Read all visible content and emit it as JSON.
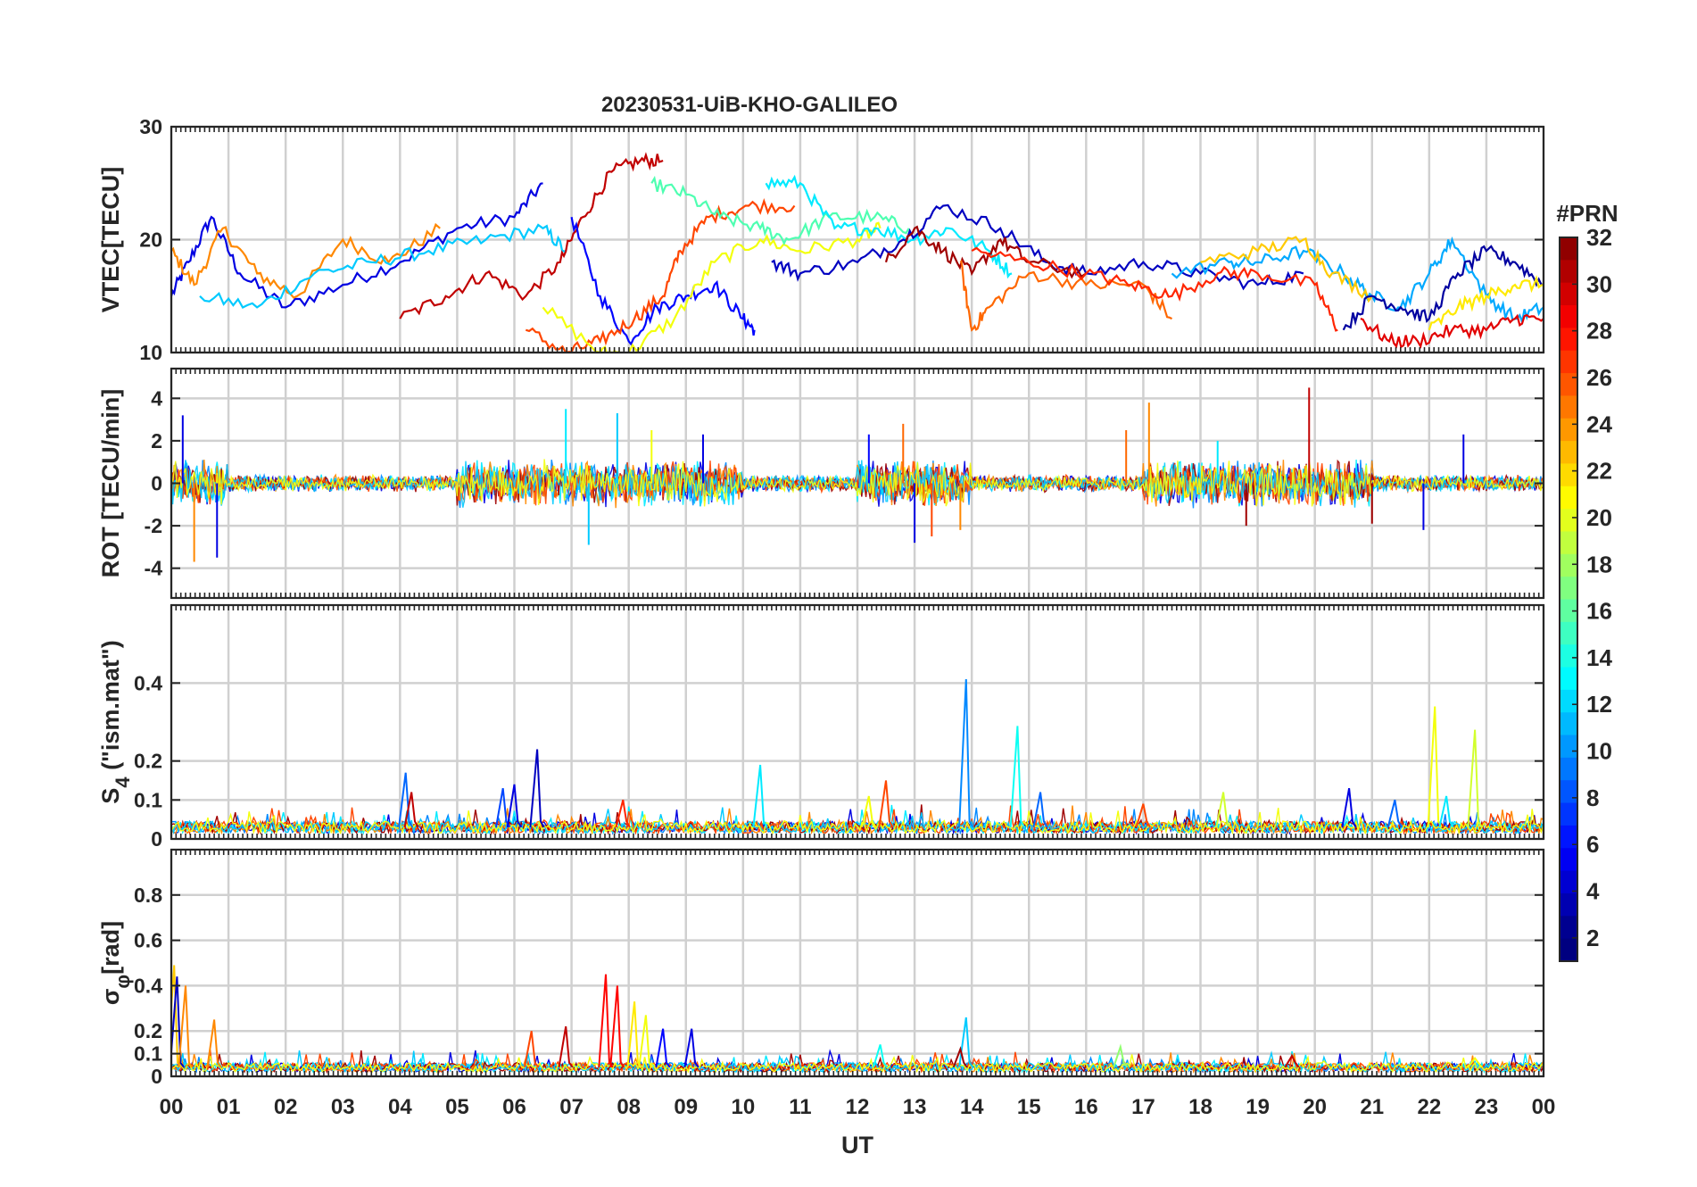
{
  "chart_data": {
    "type": "line",
    "title": "20230531-UiB-KHO-GALILEO",
    "xlabel": "UT",
    "x_tick_labels": [
      "00",
      "01",
      "02",
      "03",
      "04",
      "05",
      "06",
      "07",
      "08",
      "09",
      "10",
      "11",
      "12",
      "13",
      "14",
      "15",
      "16",
      "17",
      "18",
      "19",
      "20",
      "21",
      "22",
      "23",
      "00"
    ],
    "xlim": [
      0,
      24
    ],
    "panels": [
      {
        "id": "vtec",
        "ylabel": "VTEC[TECU]",
        "ylim": [
          10,
          30
        ],
        "y_ticks": [
          10,
          20,
          30
        ],
        "y_tick_labels": [
          "10",
          "20",
          "30"
        ],
        "series": [
          {
            "prn": 4,
            "x": [
              0.0,
              0.3,
              0.7,
              1.2,
              2.0,
              3.0,
              4.0,
              5.0,
              6.0,
              6.5
            ],
            "y": [
              15,
              18,
              22,
              17,
              14,
              16,
              18,
              21,
              22,
              25
            ]
          },
          {
            "prn": 24,
            "x": [
              0.0,
              0.4,
              0.9,
              1.5,
              2.2,
              3.0,
              3.8,
              4.7
            ],
            "y": [
              19,
              16,
              21,
              17,
              15,
              20,
              18,
              21
            ]
          },
          {
            "prn": 11,
            "x": [
              0.5,
              1.5,
              2.5,
              3.5,
              4.5,
              5.5,
              6.5,
              6.9
            ],
            "y": [
              15,
              14,
              17,
              18,
              19,
              20,
              21,
              19
            ]
          },
          {
            "prn": 30,
            "x": [
              4.0,
              4.8,
              5.5,
              6.2,
              6.8,
              7.2,
              7.7,
              8.2,
              8.6
            ],
            "y": [
              13,
              15,
              17,
              15,
              18,
              22,
              26,
              27,
              27
            ]
          },
          {
            "prn": 5,
            "x": [
              7.0,
              7.5,
              8.0,
              8.5,
              9.0,
              9.5,
              10.0,
              10.2
            ],
            "y": [
              22,
              15,
              11,
              14,
              15,
              16,
              13,
              12
            ]
          },
          {
            "prn": 26,
            "x": [
              6.2,
              6.9,
              7.5,
              8.1,
              8.6,
              8.9,
              9.4,
              10.1,
              10.9
            ],
            "y": [
              12,
              10,
              11,
              13,
              15,
              19,
              22,
              23,
              23
            ]
          },
          {
            "prn": 20,
            "x": [
              6.5,
              7.5,
              8.0,
              8.8,
              9.5,
              10.3,
              11.0,
              12.0,
              12.4
            ],
            "y": [
              14,
              10,
              10,
              13,
              18,
              20,
              19,
              20,
              21
            ]
          },
          {
            "prn": 15,
            "x": [
              8.4,
              9.0,
              9.6,
              10.3,
              10.8,
              11.5,
              12.3,
              12.9
            ],
            "y": [
              25,
              24,
              22,
              21,
              20,
              22,
              22,
              21
            ]
          },
          {
            "prn": 12,
            "x": [
              10.4,
              11.0,
              11.6,
              12.3,
              13.0,
              13.6,
              14.3,
              14.7
            ],
            "y": [
              25,
              25,
              21,
              21,
              20,
              21,
              19,
              17
            ]
          },
          {
            "prn": 3,
            "x": [
              10.5,
              11.0,
              12.0,
              12.8,
              13.5,
              14.5,
              15.3,
              16.0,
              17.0,
              18.0,
              19.0,
              19.8
            ],
            "y": [
              18,
              17,
              18,
              20,
              23,
              21,
              18,
              17,
              18,
              17,
              16,
              17
            ]
          },
          {
            "prn": 31,
            "x": [
              12.5,
              13.0,
              13.5,
              14.0,
              14.5,
              15.0,
              16.0
            ],
            "y": [
              18,
              21,
              19,
              17,
              20,
              18,
              17
            ]
          },
          {
            "prn": 25,
            "x": [
              13.8,
              14.0,
              14.3,
              15.0,
              16.0,
              17.0,
              17.5
            ],
            "y": [
              18,
              12,
              14,
              17,
              16,
              16,
              13
            ]
          },
          {
            "prn": 27,
            "x": [
              14.0,
              15.0,
              16.0,
              16.8,
              17.5,
              18.3,
              19.0,
              20.0,
              20.4
            ],
            "y": [
              19,
              18,
              17,
              16,
              15,
              17,
              17,
              16,
              12
            ]
          },
          {
            "prn": 10,
            "x": [
              17.5,
              18.5,
              19.0,
              19.8,
              20.5,
              21.0,
              21.5,
              22.0,
              22.4,
              23.0,
              23.5,
              24.0
            ],
            "y": [
              17,
              18,
              18,
              19,
              17,
              15,
              14,
              17,
              20,
              15,
              13,
              14
            ]
          },
          {
            "prn": 22,
            "x": [
              18.0,
              19.0,
              19.8,
              20.3,
              21.0
            ],
            "y": [
              18,
              19,
              20,
              17,
              15
            ]
          },
          {
            "prn": 2,
            "x": [
              20.5,
              21.0,
              21.5,
              22.0,
              22.5,
              23.0,
              23.5,
              24.0
            ],
            "y": [
              12,
              15,
              14,
              13,
              17,
              19,
              18,
              16
            ]
          },
          {
            "prn": 29,
            "x": [
              20.8,
              21.3,
              21.8,
              22.4,
              23.0,
              23.5,
              24.0
            ],
            "y": [
              13,
              11,
              11,
              12,
              12,
              13,
              13
            ]
          },
          {
            "prn": 21,
            "x": [
              22.0,
              22.5,
              23.0,
              23.5,
              24.0
            ],
            "y": [
              12,
              14,
              15,
              16,
              16
            ]
          }
        ]
      },
      {
        "id": "rot",
        "ylabel": "ROT [TECU/min]",
        "ylim": [
          -5.4,
          5.4
        ],
        "y_ticks": [
          -4,
          -2,
          0,
          2,
          4
        ],
        "y_tick_labels": [
          "-4",
          "-2",
          "0",
          "2",
          "4"
        ],
        "noise_prns": [
          4,
          9,
          12,
          24,
          31,
          26,
          11,
          20
        ],
        "noise_amplitude": [
          0.35,
          1.0
        ],
        "spikes": [
          {
            "x": 0.2,
            "y": 3.2,
            "prn": 4
          },
          {
            "x": 0.4,
            "y": -3.7,
            "prn": 24
          },
          {
            "x": 0.8,
            "y": -3.5,
            "prn": 4
          },
          {
            "x": 6.9,
            "y": 3.5,
            "prn": 12
          },
          {
            "x": 7.3,
            "y": -2.9,
            "prn": 11
          },
          {
            "x": 7.8,
            "y": 3.3,
            "prn": 11
          },
          {
            "x": 8.4,
            "y": 2.5,
            "prn": 20
          },
          {
            "x": 9.3,
            "y": 2.3,
            "prn": 4
          },
          {
            "x": 12.2,
            "y": 2.3,
            "prn": 5
          },
          {
            "x": 12.8,
            "y": 2.8,
            "prn": 25
          },
          {
            "x": 13.0,
            "y": -2.8,
            "prn": 4
          },
          {
            "x": 13.3,
            "y": -2.5,
            "prn": 26
          },
          {
            "x": 13.8,
            "y": -2.2,
            "prn": 24
          },
          {
            "x": 16.7,
            "y": 2.5,
            "prn": 25
          },
          {
            "x": 17.1,
            "y": 3.8,
            "prn": 24
          },
          {
            "x": 18.3,
            "y": 2.0,
            "prn": 12
          },
          {
            "x": 18.8,
            "y": -2.0,
            "prn": 31
          },
          {
            "x": 19.9,
            "y": 4.5,
            "prn": 30
          },
          {
            "x": 21.0,
            "y": -1.9,
            "prn": 31
          },
          {
            "x": 21.9,
            "y": -2.2,
            "prn": 4
          },
          {
            "x": 22.6,
            "y": 2.3,
            "prn": 4
          }
        ]
      },
      {
        "id": "s4",
        "ylabel": "S4 (\"ism.mat\")",
        "ylabel_main": "S",
        "ylabel_sub": "4",
        "ylabel_rest": " (\"ism.mat\")",
        "ylim": [
          0,
          0.6
        ],
        "y_ticks": [
          0,
          0.1,
          0.2,
          0.4
        ],
        "y_tick_labels": [
          "0",
          "0.1",
          "0.2",
          "0.4"
        ],
        "baseline": 0.03,
        "noise_prns": [
          4,
          9,
          12,
          24,
          31,
          26,
          11,
          20
        ],
        "spikes": [
          {
            "x": 4.1,
            "y": 0.17,
            "prn": 8
          },
          {
            "x": 4.2,
            "y": 0.12,
            "prn": 30
          },
          {
            "x": 5.8,
            "y": 0.13,
            "prn": 7
          },
          {
            "x": 6.4,
            "y": 0.23,
            "prn": 3
          },
          {
            "x": 6.0,
            "y": 0.14,
            "prn": 4
          },
          {
            "x": 7.9,
            "y": 0.1,
            "prn": 27
          },
          {
            "x": 10.3,
            "y": 0.19,
            "prn": 12
          },
          {
            "x": 12.5,
            "y": 0.15,
            "prn": 26
          },
          {
            "x": 12.2,
            "y": 0.11,
            "prn": 20
          },
          {
            "x": 13.9,
            "y": 0.41,
            "prn": 9
          },
          {
            "x": 14.8,
            "y": 0.29,
            "prn": 13
          },
          {
            "x": 15.2,
            "y": 0.12,
            "prn": 8
          },
          {
            "x": 17.0,
            "y": 0.09,
            "prn": 26
          },
          {
            "x": 18.4,
            "y": 0.12,
            "prn": 19
          },
          {
            "x": 20.6,
            "y": 0.13,
            "prn": 4
          },
          {
            "x": 21.4,
            "y": 0.1,
            "prn": 8
          },
          {
            "x": 22.1,
            "y": 0.34,
            "prn": 20
          },
          {
            "x": 22.8,
            "y": 0.28,
            "prn": 19
          },
          {
            "x": 22.3,
            "y": 0.11,
            "prn": 12
          }
        ]
      },
      {
        "id": "sigma",
        "ylabel": "σφ[rad]",
        "ylabel_main": "σ",
        "ylabel_sub": "φ",
        "ylabel_rest": "[rad]",
        "ylim": [
          0,
          1.0
        ],
        "y_ticks": [
          0,
          0.1,
          0.2,
          0.4,
          0.6,
          0.8
        ],
        "y_tick_labels": [
          "0",
          "0.1",
          "0.2",
          "0.4",
          "0.6",
          "0.8"
        ],
        "baseline": 0.04,
        "noise_prns": [
          4,
          9,
          12,
          24,
          31,
          26,
          11,
          20
        ],
        "spikes": [
          {
            "x": 0.05,
            "y": 0.49,
            "prn": 22
          },
          {
            "x": 0.1,
            "y": 0.44,
            "prn": 3
          },
          {
            "x": 0.25,
            "y": 0.4,
            "prn": 24
          },
          {
            "x": 0.75,
            "y": 0.25,
            "prn": 24
          },
          {
            "x": 6.3,
            "y": 0.2,
            "prn": 26
          },
          {
            "x": 6.9,
            "y": 0.22,
            "prn": 30
          },
          {
            "x": 7.6,
            "y": 0.45,
            "prn": 28
          },
          {
            "x": 7.8,
            "y": 0.4,
            "prn": 28
          },
          {
            "x": 8.1,
            "y": 0.33,
            "prn": 21
          },
          {
            "x": 8.3,
            "y": 0.27,
            "prn": 20
          },
          {
            "x": 8.6,
            "y": 0.21,
            "prn": 5
          },
          {
            "x": 9.1,
            "y": 0.21,
            "prn": 4
          },
          {
            "x": 12.4,
            "y": 0.14,
            "prn": 13
          },
          {
            "x": 13.9,
            "y": 0.26,
            "prn": 11
          },
          {
            "x": 13.8,
            "y": 0.12,
            "prn": 31
          },
          {
            "x": 16.6,
            "y": 0.13,
            "prn": 17
          },
          {
            "x": 19.6,
            "y": 0.09,
            "prn": 30
          },
          {
            "x": 22.8,
            "y": 0.08,
            "prn": 20
          }
        ]
      }
    ],
    "colorbar": {
      "label": "#PRN",
      "range": [
        1,
        32
      ],
      "ticks": [
        2,
        4,
        6,
        8,
        10,
        12,
        14,
        16,
        18,
        20,
        22,
        24,
        26,
        28,
        30,
        32
      ],
      "tick_labels": [
        "2",
        "4",
        "6",
        "8",
        "10",
        "12",
        "14",
        "16",
        "18",
        "20",
        "22",
        "24",
        "26",
        "28",
        "30",
        "32"
      ],
      "colormap": "jet"
    },
    "grid": true,
    "legend": "colorbar-right"
  }
}
